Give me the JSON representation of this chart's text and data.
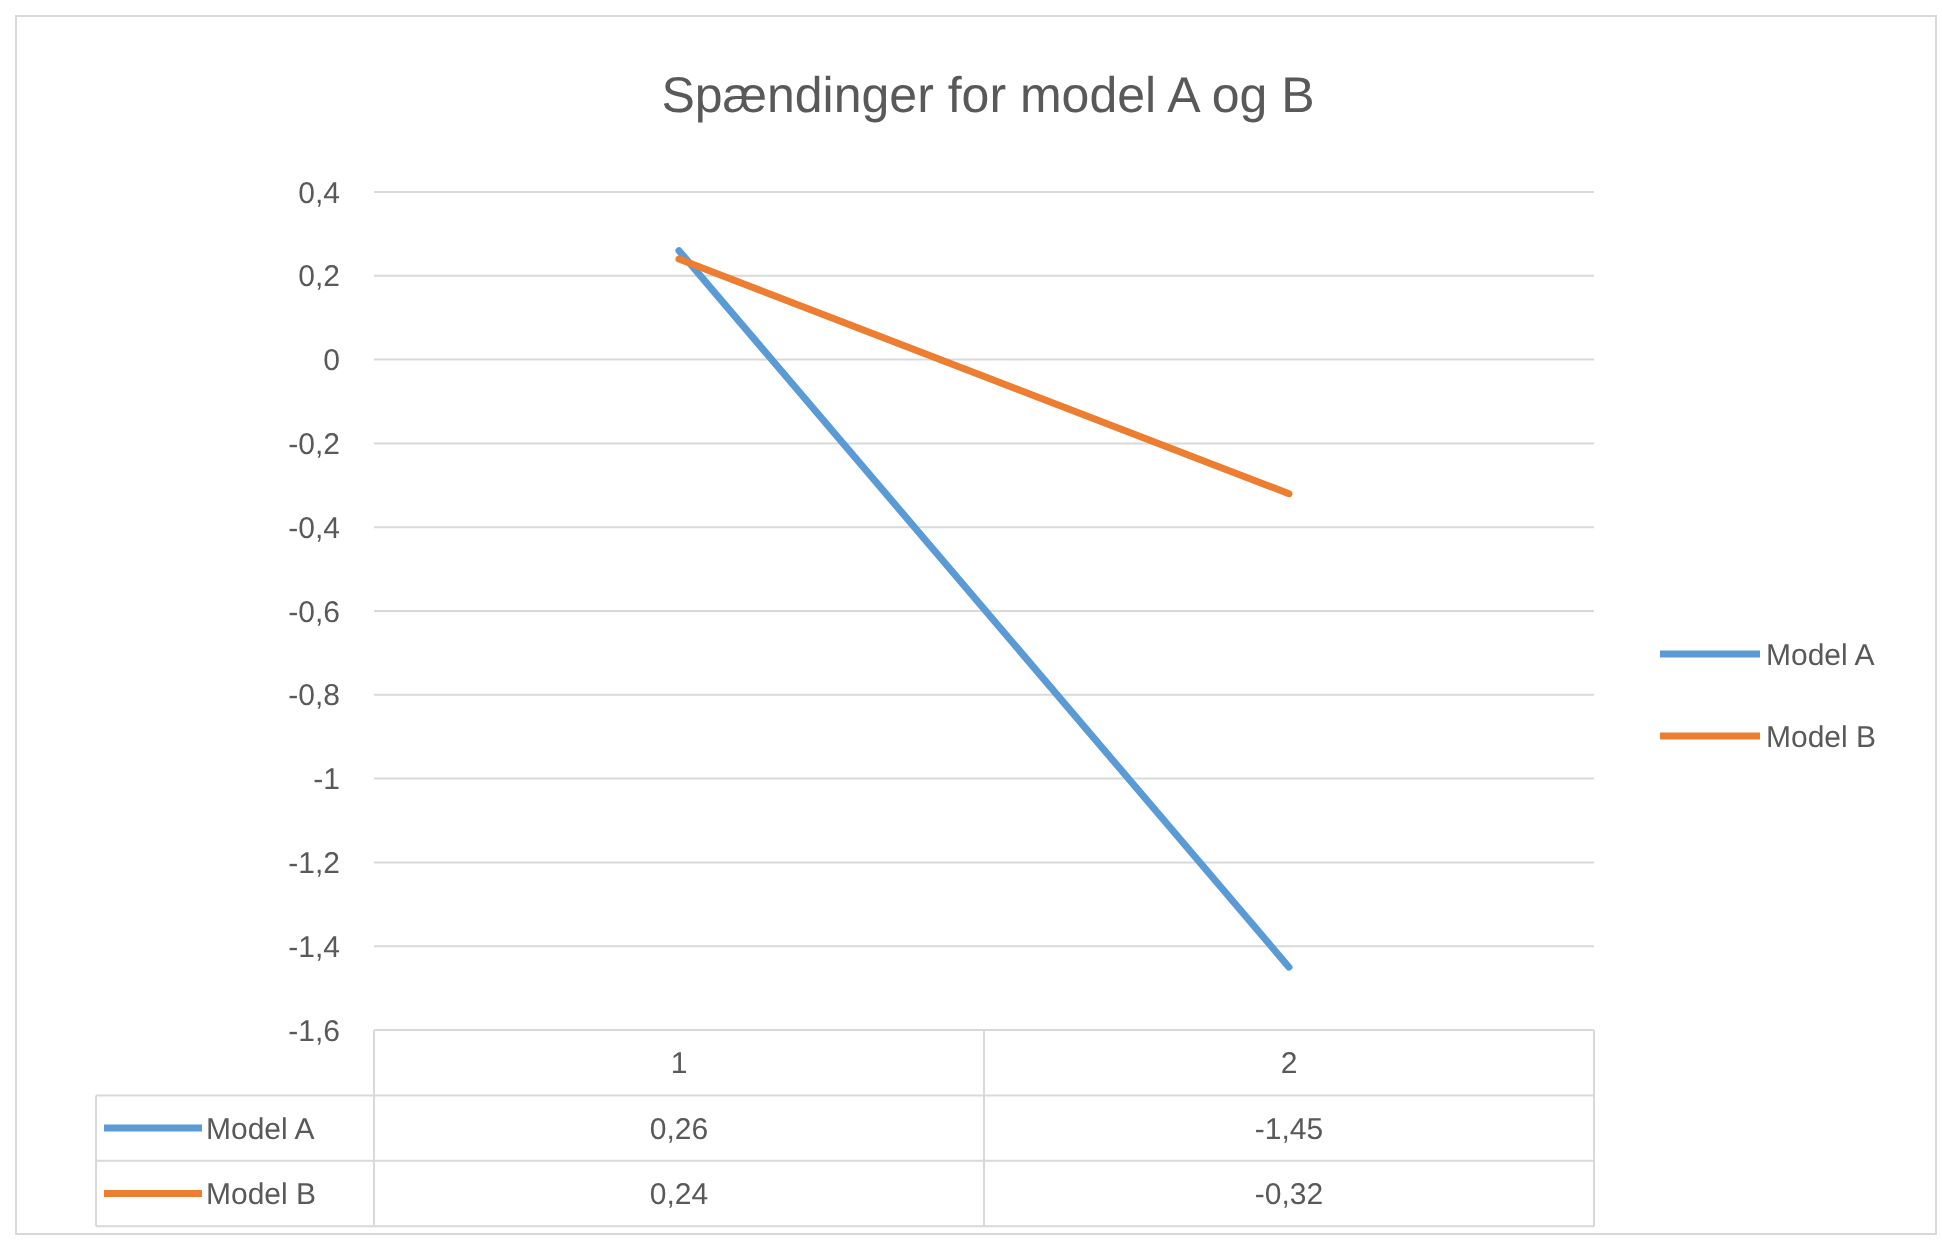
{
  "chart_data": {
    "type": "line",
    "title": "Spændinger for model A og B",
    "categories": [
      "1",
      "2"
    ],
    "series": [
      {
        "name": "Model A",
        "color": "#5b9bd5",
        "values": [
          0.26,
          -1.45
        ],
        "value_labels": [
          "0,26",
          "-1,45"
        ]
      },
      {
        "name": "Model B",
        "color": "#ed7d31",
        "values": [
          0.24,
          -0.32
        ],
        "value_labels": [
          "0,24",
          "-0,32"
        ]
      }
    ],
    "ylim": [
      -1.6,
      0.4
    ],
    "yticks": [
      {
        "value": 0.4,
        "label": "0,4"
      },
      {
        "value": 0.2,
        "label": "0,2"
      },
      0,
      {
        "value": -0.2,
        "label": "-0,2"
      },
      {
        "value": -0.4,
        "label": "-0,4"
      },
      {
        "value": -0.6,
        "label": "-0,6"
      },
      {
        "value": -0.8,
        "label": "-0,8"
      },
      -1,
      {
        "value": -1.2,
        "label": "-1,2"
      },
      {
        "value": -1.4,
        "label": "-1,4"
      },
      {
        "value": -1.6,
        "label": "-1,6"
      }
    ],
    "grid": "y",
    "legend": "right"
  }
}
